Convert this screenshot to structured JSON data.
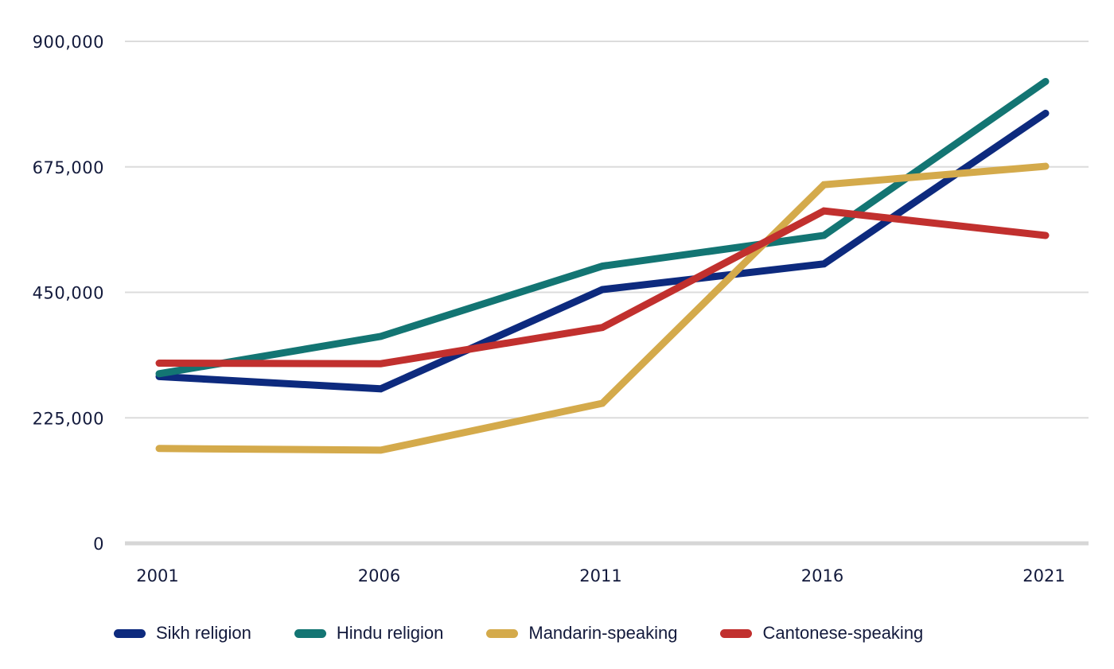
{
  "chart_data": {
    "type": "line",
    "title": "",
    "xlabel": "",
    "ylabel": "",
    "x": [
      "2001",
      "2006",
      "2011",
      "2016",
      "2021"
    ],
    "ylim": [
      0,
      900000
    ],
    "yticks": [
      0,
      225000,
      450000,
      675000,
      900000
    ],
    "ytick_labels": [
      "0",
      "225,000",
      "450,000",
      "675,000",
      "900,000"
    ],
    "grid": true,
    "legend_position": "bottom",
    "series": [
      {
        "name": "Sikh religion",
        "color": "#0d2a7e",
        "values": [
          299000,
          277000,
          455000,
          501000,
          771000
        ]
      },
      {
        "name": "Hindu religion",
        "color": "#137573",
        "values": [
          304000,
          371000,
          497000,
          552000,
          828000
        ]
      },
      {
        "name": "Mandarin-speaking",
        "color": "#d4aa4b",
        "values": [
          170000,
          167000,
          251000,
          643000,
          676000
        ]
      },
      {
        "name": "Cantonese-speaking",
        "color": "#c1302e",
        "values": [
          323000,
          322000,
          387000,
          596000,
          552000
        ]
      }
    ]
  }
}
